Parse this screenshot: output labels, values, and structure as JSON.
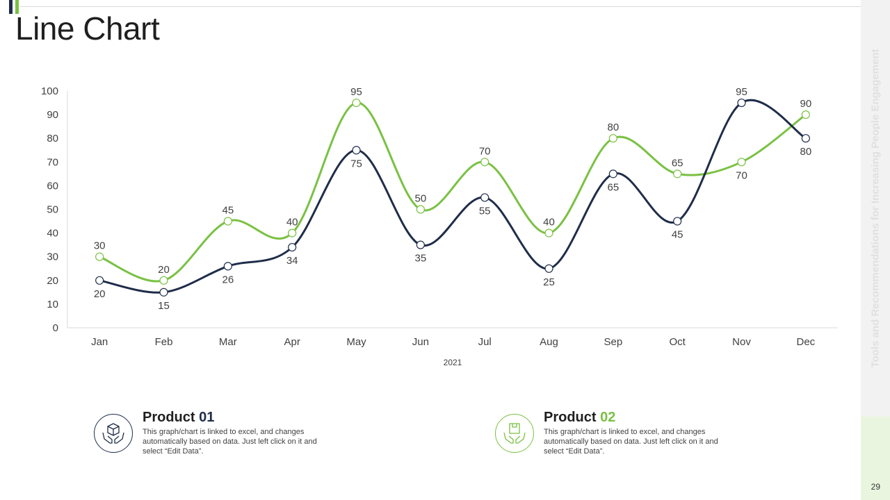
{
  "page": {
    "title": "Line Chart",
    "side_text": "Tools and Recommendations for Increasing People Engagement",
    "page_number": "29"
  },
  "colors": {
    "series1": "#1f2d4a",
    "series2": "#7ac143",
    "grid": "#d9d9d9"
  },
  "legend": [
    {
      "title_main": "Product ",
      "title_num": "01",
      "icon": "box-in-hands-icon",
      "text": "This graph/chart is linked to excel, and changes automatically based on data. Just left click on it and select “Edit Data”."
    },
    {
      "title_main": "Product ",
      "title_num": "02",
      "icon": "package-in-hands-icon",
      "text": "This graph/chart is linked to excel, and changes automatically based on data. Just left click on it and select “Edit Data”."
    }
  ],
  "chart_data": {
    "type": "line",
    "title": "",
    "xlabel": "2021",
    "ylabel": "",
    "ylim": [
      0,
      100
    ],
    "yticks": [
      0,
      10,
      20,
      30,
      40,
      50,
      60,
      70,
      80,
      90,
      100
    ],
    "categories": [
      "Jan",
      "Feb",
      "Mar",
      "Apr",
      "May",
      "Jun",
      "Jul",
      "Aug",
      "Sep",
      "Oct",
      "Nov",
      "Dec"
    ],
    "series": [
      {
        "name": "Product 01",
        "values": [
          20,
          15,
          26,
          34,
          75,
          35,
          55,
          25,
          65,
          45,
          95,
          80
        ]
      },
      {
        "name": "Product 02",
        "values": [
          30,
          20,
          45,
          40,
          95,
          50,
          70,
          40,
          80,
          65,
          70,
          90
        ]
      }
    ]
  }
}
